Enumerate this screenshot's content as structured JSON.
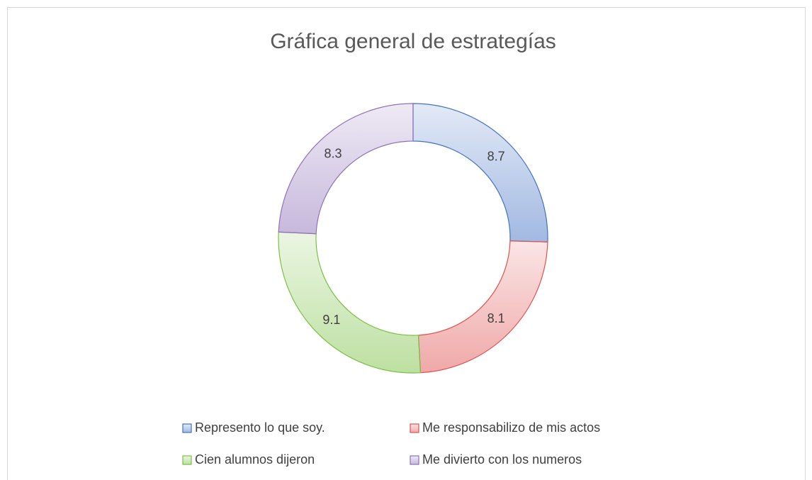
{
  "chart_data": {
    "type": "doughnut",
    "title": "Gráfica general de estrategías",
    "categories": [
      "Represento lo que soy.",
      "Me responsabilizo de mis actos",
      "Cien alumnos dijeron",
      "Me divierto con los numeros"
    ],
    "values": [
      8.7,
      8.1,
      9.1,
      8.3
    ],
    "colors": [
      "#4472c4",
      "#e05252",
      "#7ac143",
      "#8e72b8"
    ]
  }
}
